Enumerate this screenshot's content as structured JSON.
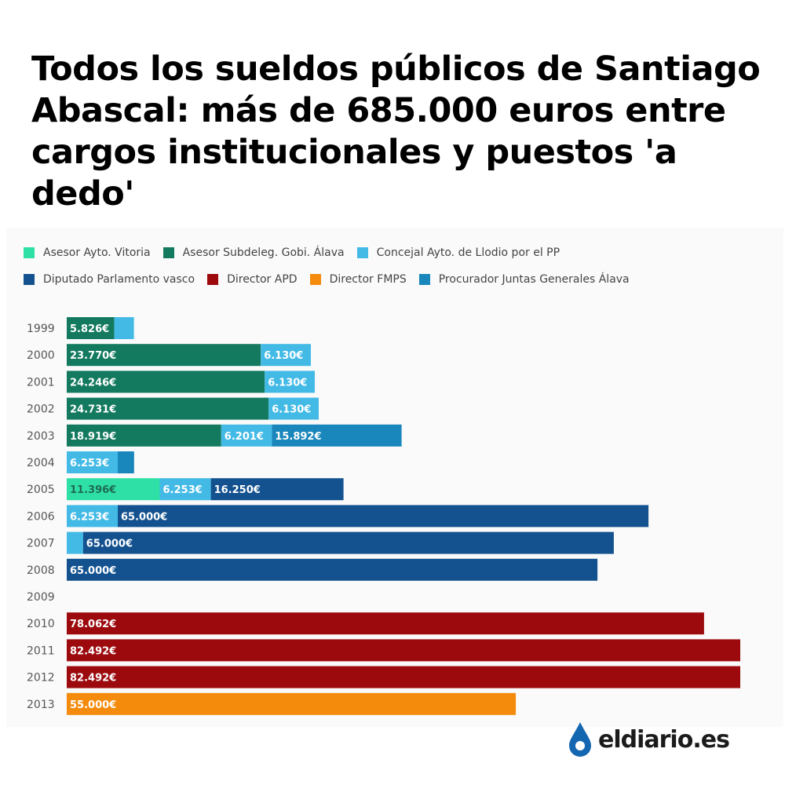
{
  "headline": "Todos los sueldos públicos de Santiago Abascal: más de 685.000 euros entre cargos institucionales y puestos 'a dedo'",
  "brand": "eldiario.es",
  "colors": {
    "brand_blue": "#1566b0"
  },
  "chart_data": {
    "type": "bar",
    "orientation": "horizontal",
    "stacked": true,
    "categories": [
      "1999",
      "2000",
      "2001",
      "2002",
      "2003",
      "2004",
      "2005",
      "2006",
      "2007",
      "2008",
      "2009",
      "2010",
      "2011",
      "2012",
      "2013"
    ],
    "legend": [
      {
        "name": "Asesor Ayto. Vitoria",
        "color": "#2ee0a6"
      },
      {
        "name": "Asesor Subdeleg. Gobi. Álava",
        "color": "#137a5f"
      },
      {
        "name": "Concejal Ayto. de Llodio por el PP",
        "color": "#43bae6"
      },
      {
        "name": "Diputado Parlamento vasco",
        "color": "#13528f"
      },
      {
        "name": "Director APD",
        "color": "#9c0a0e"
      },
      {
        "name": "Director FMPS",
        "color": "#f48b0d"
      },
      {
        "name": "Procurador Juntas Generales Álava",
        "color": "#1986bc"
      }
    ],
    "legend_rows": [
      [
        0,
        1,
        2
      ],
      [
        3,
        4,
        5,
        6
      ]
    ],
    "series": [
      {
        "name": "Asesor Ayto. Vitoria",
        "values": [
          0,
          0,
          0,
          0,
          0,
          0,
          11396,
          0,
          0,
          0,
          0,
          0,
          0,
          0,
          0
        ]
      },
      {
        "name": "Asesor Subdeleg. Gobi. Álava",
        "values": [
          5826,
          23770,
          24246,
          24731,
          18919,
          0,
          0,
          0,
          0,
          0,
          0,
          0,
          0,
          0,
          0
        ]
      },
      {
        "name": "Concejal Ayto. de Llodio por el PP",
        "values": [
          2400,
          6130,
          6130,
          6130,
          6201,
          6253,
          6253,
          6253,
          2000,
          0,
          0,
          0,
          0,
          0,
          0
        ]
      },
      {
        "name": "Procurador Juntas Generales Álava",
        "values": [
          0,
          0,
          0,
          0,
          15892,
          2000,
          0,
          0,
          0,
          0,
          0,
          0,
          0,
          0,
          0
        ]
      },
      {
        "name": "Diputado Parlamento vasco",
        "values": [
          0,
          0,
          0,
          0,
          0,
          0,
          16250,
          65000,
          65000,
          65000,
          0,
          0,
          0,
          0,
          0
        ]
      },
      {
        "name": "Director APD",
        "values": [
          0,
          0,
          0,
          0,
          0,
          0,
          0,
          0,
          0,
          0,
          0,
          78062,
          82492,
          82492,
          0
        ]
      },
      {
        "name": "Director FMPS",
        "values": [
          0,
          0,
          0,
          0,
          0,
          0,
          0,
          0,
          0,
          0,
          0,
          0,
          0,
          0,
          55000
        ]
      }
    ],
    "data_labels": [
      [
        "5.826€",
        "",
        "",
        "",
        "",
        "",
        ""
      ],
      [
        "23.770€",
        "6.130€",
        "",
        "",
        "",
        "",
        ""
      ],
      [
        "24.246€",
        "6.130€",
        "",
        "",
        "",
        "",
        ""
      ],
      [
        "24.731€",
        "6.130€",
        "",
        "",
        "",
        "",
        ""
      ],
      [
        "18.919€",
        "6.201€",
        "15.892€",
        "",
        "",
        "",
        ""
      ],
      [
        "6.253€",
        "",
        "",
        "",
        "",
        "",
        ""
      ],
      [
        "11.396€",
        "6.253€",
        "16.250€",
        "",
        "",
        "",
        ""
      ],
      [
        "6.253€",
        "65.000€",
        "",
        "",
        "",
        "",
        ""
      ],
      [
        "",
        "65.000€",
        "",
        "",
        "",
        "",
        ""
      ],
      [
        "65.000€",
        "",
        "",
        "",
        "",
        "",
        ""
      ],
      [
        "",
        "",
        "",
        "",
        "",
        "",
        ""
      ],
      [
        "78.062€",
        "",
        "",
        "",
        "",
        "",
        ""
      ],
      [
        "82.492€",
        "",
        "",
        "",
        "",
        "",
        ""
      ],
      [
        "82.492€",
        "",
        "",
        "",
        "",
        "",
        ""
      ],
      [
        "55.000€",
        "",
        "",
        "",
        "",
        "",
        ""
      ]
    ],
    "xlim": [
      0,
      82492
    ],
    "grid": false,
    "legend_position": "top-left"
  }
}
